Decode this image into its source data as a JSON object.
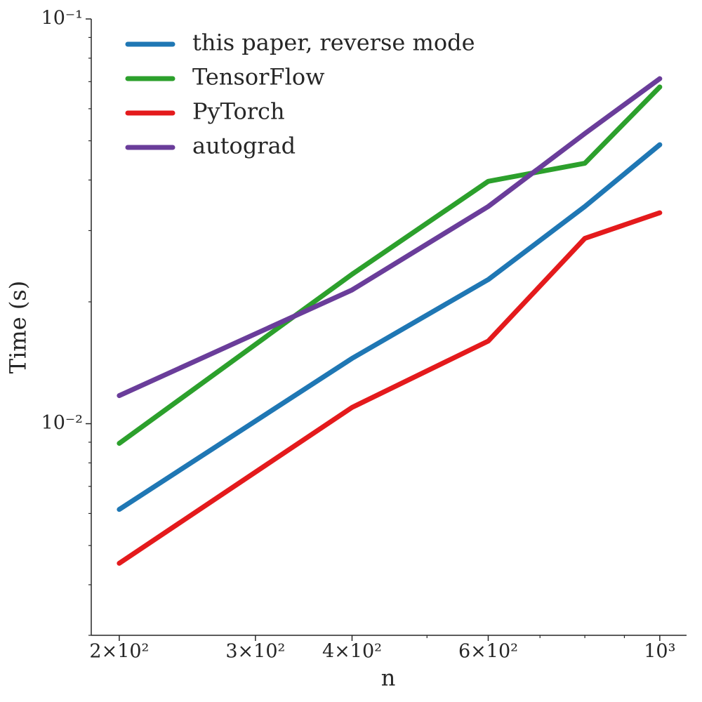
{
  "chart_data": {
    "type": "line",
    "xlabel": "n",
    "ylabel": "Time (s)",
    "xscale": "log",
    "yscale": "log",
    "x": [
      200,
      400,
      600,
      800,
      1000
    ],
    "series": [
      {
        "name": "this paper, reverse mode",
        "color": "#1f77b4",
        "values": [
          0.00614,
          0.0145,
          0.0227,
          0.0344,
          0.0489
        ]
      },
      {
        "name": "TensorFlow",
        "color": "#2ca02c",
        "values": [
          0.00894,
          0.0234,
          0.0397,
          0.044,
          0.0679
        ]
      },
      {
        "name": "PyTorch",
        "color": "#e41a1c",
        "values": [
          0.00452,
          0.01097,
          0.016,
          0.0287,
          0.0332
        ]
      },
      {
        "name": "autograd",
        "color": "#6a3d9a",
        "values": [
          0.01173,
          0.0214,
          0.0344,
          0.0521,
          0.0712
        ]
      }
    ],
    "xlim": [
      184,
      1083
    ],
    "ylim": [
      0.003,
      0.1
    ],
    "xticks": [
      {
        "value": 200,
        "label": "2×10²"
      },
      {
        "value": 300,
        "label": "3×10²"
      },
      {
        "value": 400,
        "label": "4×10²"
      },
      {
        "value": 600,
        "label": "6×10²"
      },
      {
        "value": 1000,
        "label": "10³"
      }
    ],
    "xminorticks": [
      500,
      700,
      800,
      900
    ],
    "yticks": [
      {
        "value": 0.01,
        "label": "10⁻²"
      },
      {
        "value": 0.1,
        "label": "10⁻¹"
      }
    ],
    "yminorticks": [
      0.003,
      0.004,
      0.005,
      0.006,
      0.007,
      0.008,
      0.009,
      0.02,
      0.03,
      0.04,
      0.05,
      0.06,
      0.07,
      0.08,
      0.09
    ],
    "legend": "upper left"
  }
}
